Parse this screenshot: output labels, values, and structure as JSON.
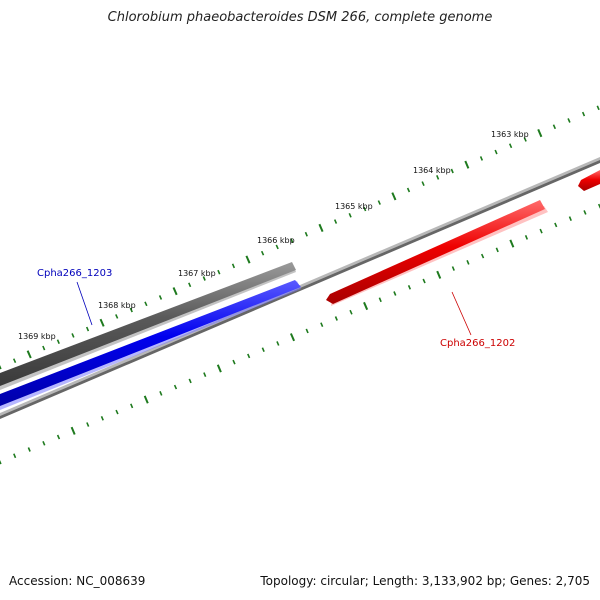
{
  "title": "Chlorobium phaeobacteroides DSM 266, complete genome",
  "footer": {
    "accession": "Accession: NC_008639",
    "summary": "Topology: circular; Length: 3,133,902 bp; Genes: 2,705"
  },
  "colors": {
    "tick": "#1e7a1e",
    "gene_forward_gray": "#5a5a5a",
    "gene_forward_blue": "#0000ee",
    "gene_reverse_red": "#ee0000",
    "backbone": "#808080",
    "label_blue": "#0000bb",
    "label_red": "#cc0000"
  },
  "ticks": [
    {
      "label": "1363 kbp"
    },
    {
      "label": "1364 kbp"
    },
    {
      "label": "1365 kbp"
    },
    {
      "label": "1366 kbp"
    },
    {
      "label": "1367 kbp"
    },
    {
      "label": "1368 kbp"
    },
    {
      "label": "1369 kbp"
    }
  ],
  "genes": [
    {
      "name": "Cpha266_1203",
      "strand": "forward"
    },
    {
      "name": "Cpha266_1202",
      "strand": "reverse"
    }
  ]
}
